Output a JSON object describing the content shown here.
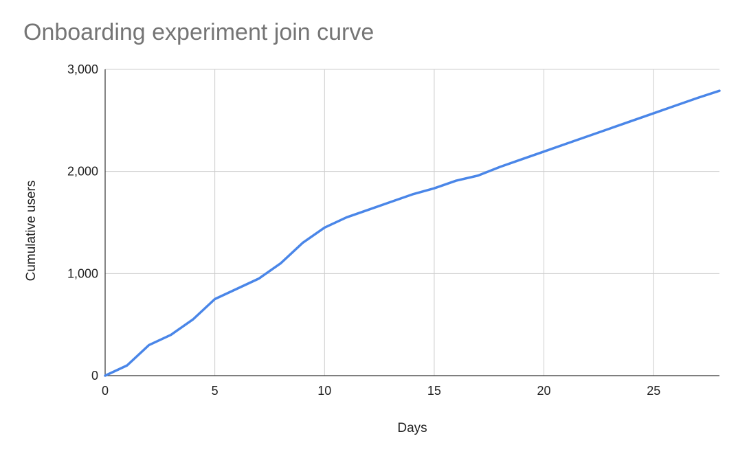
{
  "chart_data": {
    "type": "line",
    "title": "Onboarding experiment join curve",
    "xlabel": "Days",
    "ylabel": "Cumulative users",
    "xlim": [
      0,
      28
    ],
    "ylim": [
      0,
      3000
    ],
    "x_ticks": [
      0,
      5,
      10,
      15,
      20,
      25
    ],
    "x_tick_labels": [
      "0",
      "5",
      "10",
      "15",
      "20",
      "25"
    ],
    "y_ticks": [
      0,
      1000,
      2000,
      3000
    ],
    "y_tick_labels": [
      "0",
      "1,000",
      "2,000",
      "3,000"
    ],
    "grid": true,
    "legend": "none",
    "line_color": "#4a86e8",
    "series": [
      {
        "x": [
          0,
          1,
          2,
          3,
          4,
          5,
          6,
          7,
          8,
          9,
          10,
          11,
          12,
          13,
          14,
          15,
          16,
          17,
          18,
          19,
          20,
          21,
          22,
          23,
          24,
          25,
          26,
          27,
          28
        ],
        "values": [
          0,
          100,
          300,
          400,
          550,
          750,
          850,
          950,
          1100,
          1300,
          1450,
          1550,
          1625,
          1700,
          1775,
          1835,
          1910,
          1960,
          2045,
          2120,
          2195,
          2270,
          2345,
          2420,
          2495,
          2570,
          2645,
          2720,
          2790
        ]
      }
    ]
  }
}
